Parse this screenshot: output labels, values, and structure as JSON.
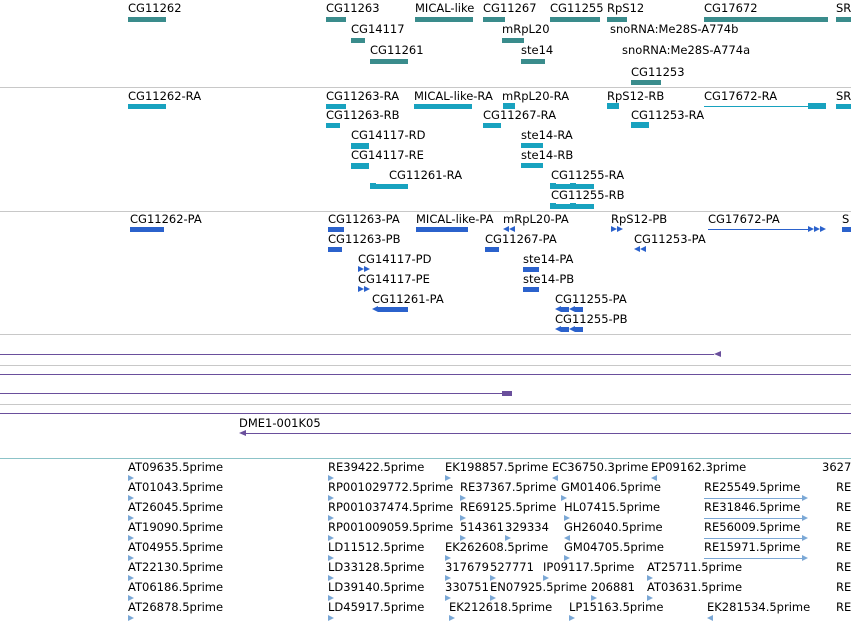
{
  "genes": [
    "CG11262",
    "CG11263",
    "MICAL-like",
    "CG11267",
    "CG11255",
    "RpS12",
    "CG17672",
    "SR",
    "CG14117",
    "mRpL20",
    "snoRNA:Me28S-A774b",
    "CG11261",
    "ste14",
    "snoRNA:Me28S-A774a",
    "CG11253"
  ],
  "transcripts": [
    "CG11262-RA",
    "CG11263-RA",
    "MICAL-like-RA",
    "mRpL20-RA",
    "RpS12-RB",
    "CG17672-RA",
    "SR",
    "CG11263-RB",
    "CG11267-RA",
    "CG11253-RA",
    "CG14117-RD",
    "ste14-RA",
    "CG14117-RE",
    "ste14-RB",
    "CG11261-RA",
    "CG11255-RA",
    "CG11255-RB"
  ],
  "proteins": [
    "CG11262-PA",
    "CG11263-PA",
    "MICAL-like-PA",
    "mRpL20-PA",
    "RpS12-PB",
    "CG17672-PA",
    "S",
    "CG11263-PB",
    "CG11267-PA",
    "CG11253-PA",
    "CG14117-PD",
    "ste14-PA",
    "CG14117-PE",
    "ste14-PB",
    "CG11261-PA",
    "CG11255-PA",
    "CG11255-PB"
  ],
  "clone_label": "DME1-001K05",
  "ests": [
    "AT09635.5prime",
    "RE39422.5prime",
    "EK198857.5prime",
    "EC36750.3prime",
    "EP09162.3prime",
    "3627",
    "AT01043.5prime",
    "RP001029772.5prime",
    "RE37367.5prime",
    "GM01406.5prime",
    "RE25549.5prime",
    "RE",
    "AT26045.5prime",
    "RP001037474.5prime",
    "RE69125.5prime",
    "HL07415.5prime",
    "RE31846.5prime",
    "RE",
    "AT19090.5prime",
    "RP001009059.5prime",
    "514361",
    "329334",
    "GH26040.5prime",
    "RE56009.5prime",
    "RE",
    "AT04955.5prime",
    "LD11512.5prime",
    "EK262608.5prime",
    "GM04705.5prime",
    "RE15971.5prime",
    "RE",
    "AT22130.5prime",
    "LD33128.5prime",
    "317679",
    "527771",
    "IP09117.5prime",
    "AT25711.5prime",
    "RE",
    "AT06186.5prime",
    "LD39140.5prime",
    "330751",
    "EN07925.5prime",
    "206881",
    "AT03631.5prime",
    "RE",
    "AT26878.5prime",
    "LD45917.5prime",
    "EK212618.5prime",
    "LP15163.5prime",
    "EK281534.5prime",
    "RE"
  ]
}
